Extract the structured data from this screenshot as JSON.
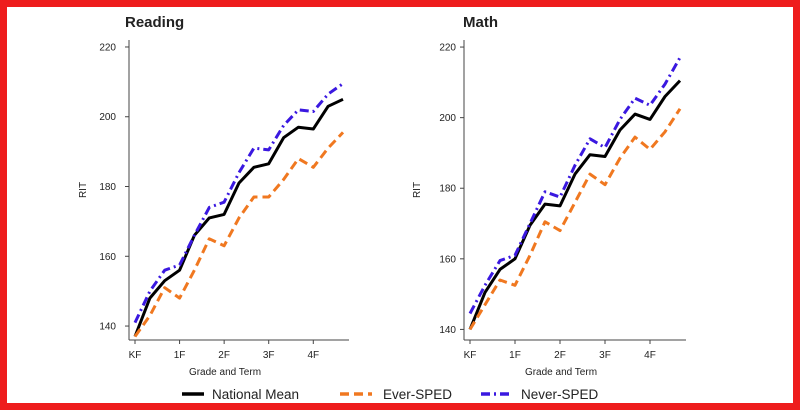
{
  "chart_data": [
    {
      "type": "line",
      "title": "Reading",
      "xlabel": "Grade and Term",
      "ylabel": "RIT",
      "ylim": [
        136,
        222
      ],
      "yticks": [
        140,
        160,
        180,
        200,
        220
      ],
      "x_tick_labels": [
        "KF",
        "1F",
        "2F",
        "3F",
        "4F"
      ],
      "x_tick_index": [
        0,
        3,
        6,
        9,
        12
      ],
      "grid": false,
      "series": [
        {
          "name": "National Mean",
          "color": "#000000",
          "dash": "solid",
          "values": [
            137,
            148,
            153,
            156,
            166,
            171,
            172,
            181,
            185.5,
            186.5,
            194,
            197,
            196.5,
            203,
            205
          ]
        },
        {
          "name": "Ever-SPED",
          "color": "#f07820",
          "dash": "dashed",
          "values": [
            137,
            143,
            151,
            148,
            156,
            165,
            163,
            171,
            177,
            177,
            182,
            188,
            185.5,
            191,
            195.5
          ]
        },
        {
          "name": "Never-SPED",
          "color": "#3a18e0",
          "dash": "dashdot",
          "values": [
            141,
            150,
            156,
            157.5,
            166,
            174,
            175.5,
            184,
            191,
            190.5,
            197.5,
            202,
            201.5,
            206.5,
            209.5
          ]
        }
      ]
    },
    {
      "type": "line",
      "title": "Math",
      "xlabel": "Grade and Term",
      "ylabel": "RIT",
      "ylim": [
        137,
        222
      ],
      "yticks": [
        140,
        160,
        180,
        200,
        220
      ],
      "x_tick_labels": [
        "KF",
        "1F",
        "2F",
        "3F",
        "4F"
      ],
      "x_tick_index": [
        0,
        3,
        6,
        9,
        12
      ],
      "grid": false,
      "series": [
        {
          "name": "National Mean",
          "color": "#000000",
          "dash": "solid",
          "values": [
            140,
            150.5,
            157,
            160,
            169.5,
            175.5,
            175,
            184,
            189.5,
            189,
            196.5,
            201,
            199.5,
            206,
            210.5
          ]
        },
        {
          "name": "Ever-SPED",
          "color": "#f07820",
          "dash": "dashed",
          "values": [
            140,
            147,
            154,
            152.5,
            161,
            170.5,
            168,
            176,
            184,
            181,
            188.5,
            194.5,
            191,
            196,
            202.5
          ]
        },
        {
          "name": "Never-SPED",
          "color": "#3a18e0",
          "dash": "dashdot",
          "values": [
            144.5,
            152.5,
            159.5,
            161,
            170,
            179,
            177.5,
            186.5,
            194,
            191.5,
            199.5,
            205.5,
            203.5,
            209.5,
            217
          ]
        }
      ]
    }
  ],
  "legend": {
    "position": "bottom",
    "items": [
      {
        "label": "National Mean",
        "color": "#000000",
        "dash": "solid"
      },
      {
        "label": "Ever-SPED",
        "color": "#f07820",
        "dash": "dashed"
      },
      {
        "label": "Never-SPED",
        "color": "#3a18e0",
        "dash": "dashdot"
      }
    ]
  }
}
